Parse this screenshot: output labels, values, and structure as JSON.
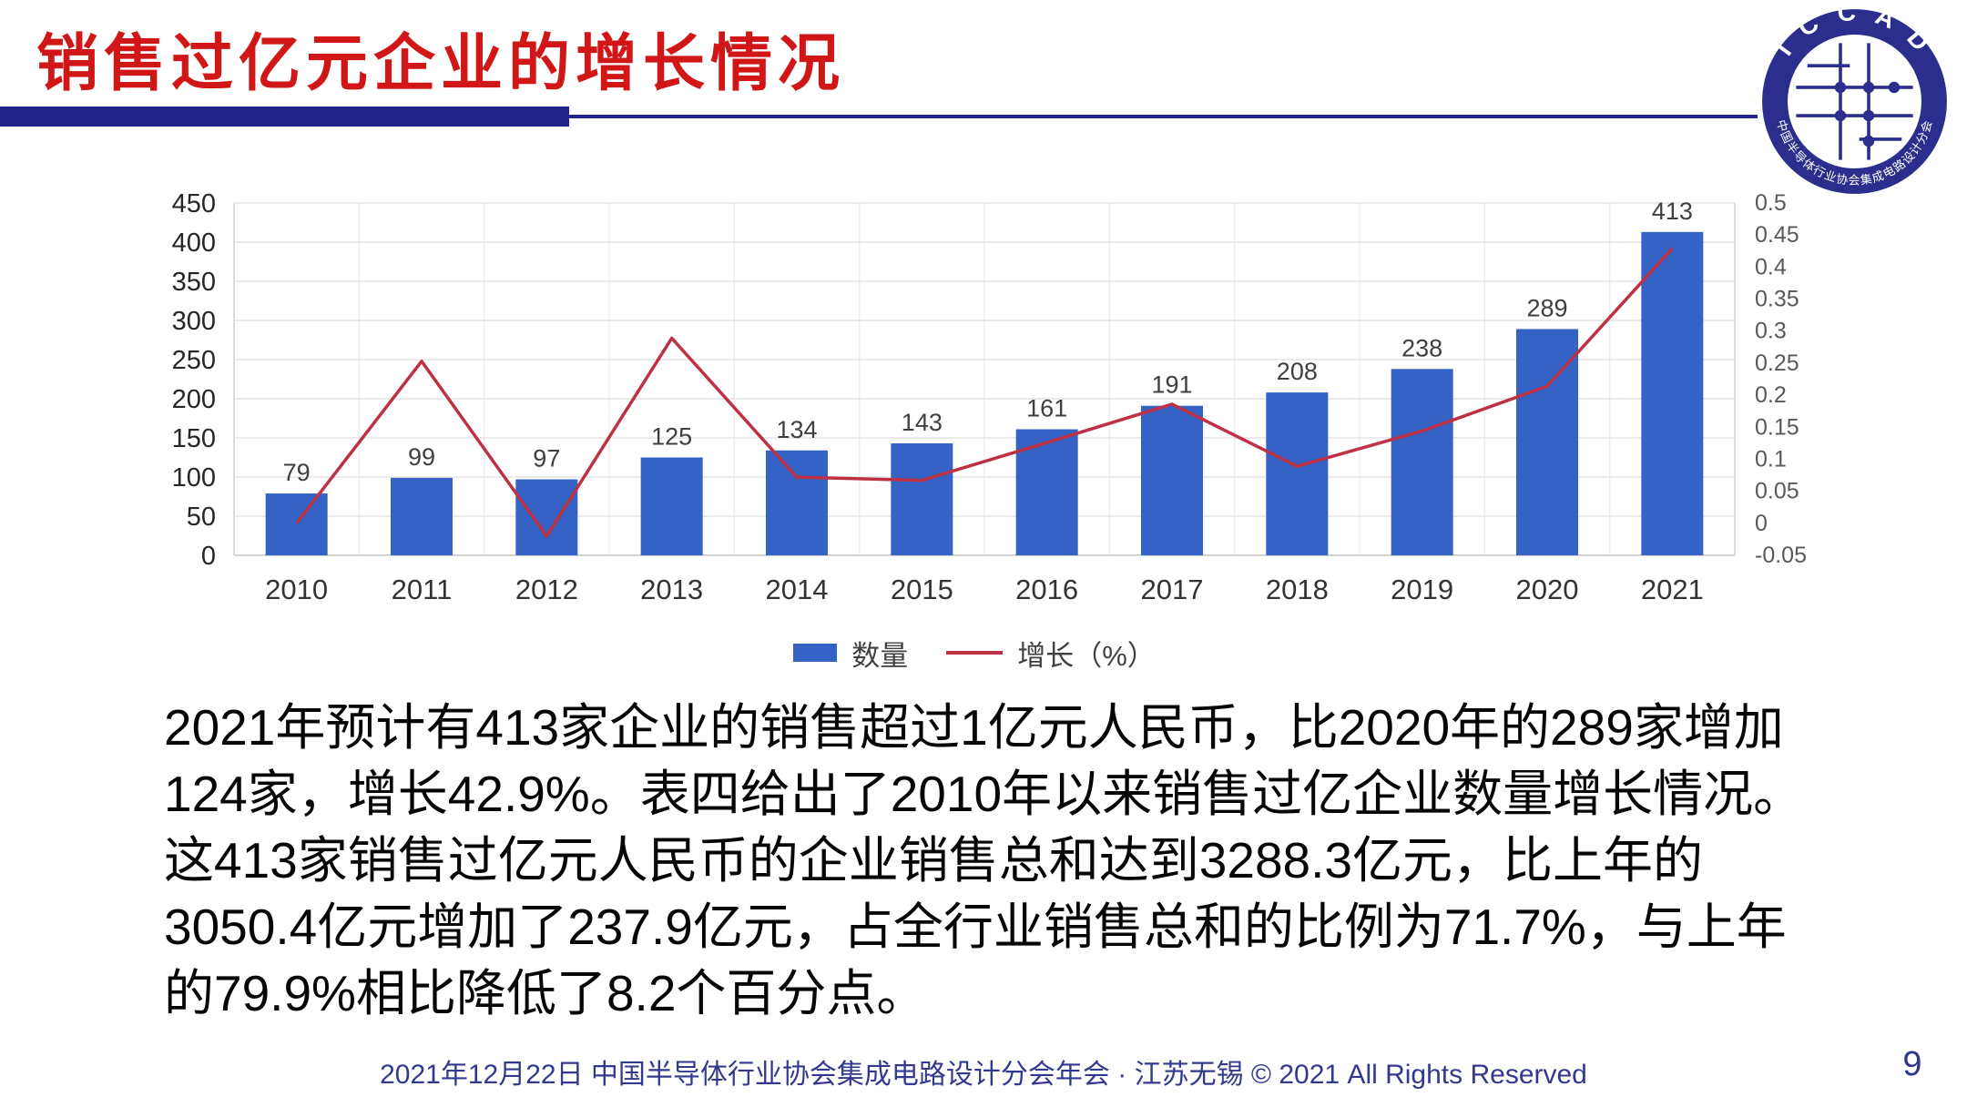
{
  "slide": {
    "title": "销售过亿元企业的增长情况",
    "footer": "2021年12月22日 中国半导体行业协会集成电路设计分会年会 · 江苏无锡 © 2021 All Rights Reserved",
    "page_number": "9"
  },
  "logo": {
    "top_text": "I C C A D",
    "bottom_text": "中国半导体行业协会集成电路设计分会"
  },
  "colors": {
    "title_red": "#D01616",
    "underline_navy": "#23238B",
    "bar_blue": "#3462C5",
    "line_red": "#BE3144",
    "grid_gray": "#E4E4E4",
    "axis_gray": "#D2D2D2",
    "footer_navy": "#32398F"
  },
  "chart_data": {
    "type": "bar",
    "subtype": "bar-line-combo",
    "categories": [
      "2010",
      "2011",
      "2012",
      "2013",
      "2014",
      "2015",
      "2016",
      "2017",
      "2018",
      "2019",
      "2020",
      "2021"
    ],
    "series": [
      {
        "name": "数量",
        "type": "bar",
        "axis": "left",
        "values": [
          79,
          99,
          97,
          125,
          134,
          143,
          161,
          191,
          208,
          238,
          289,
          413
        ]
      },
      {
        "name": "增长（%）",
        "type": "line",
        "axis": "right",
        "values": [
          0.0,
          0.253,
          -0.02,
          0.289,
          0.072,
          0.067,
          0.126,
          0.186,
          0.089,
          0.144,
          0.214,
          0.429
        ]
      }
    ],
    "left_axis": {
      "min": 0,
      "max": 450,
      "step": 50,
      "ticks": [
        "450",
        "400",
        "350",
        "300",
        "250",
        "200",
        "150",
        "100",
        "50",
        "0"
      ]
    },
    "right_axis": {
      "min": -0.05,
      "max": 0.5,
      "step": 0.05,
      "ticks": [
        "0.5",
        "0.45",
        "0.4",
        "0.35",
        "0.3",
        "0.25",
        "0.2",
        "0.15",
        "0.1",
        "0.05",
        "0",
        "-0.05"
      ]
    },
    "data_labels": [
      79,
      99,
      97,
      125,
      134,
      143,
      161,
      191,
      208,
      238,
      289,
      413
    ],
    "grid": true,
    "legend_position": "bottom"
  },
  "body": {
    "lines": [
      "2021年预计有413家企业的销售超过1亿元人民币，比2020年的289家增加",
      "124家，增长42.9%。表四给出了2010年以来销售过亿企业数量增长情况。",
      "这413家销售过亿元人民币的企业销售总和达到3288.3亿元，比上年的",
      "3050.4亿元增加了237.9亿元，占全行业销售总和的比例为71.7%，与上年",
      "的79.9%相比降低了8.2个百分点。"
    ]
  }
}
